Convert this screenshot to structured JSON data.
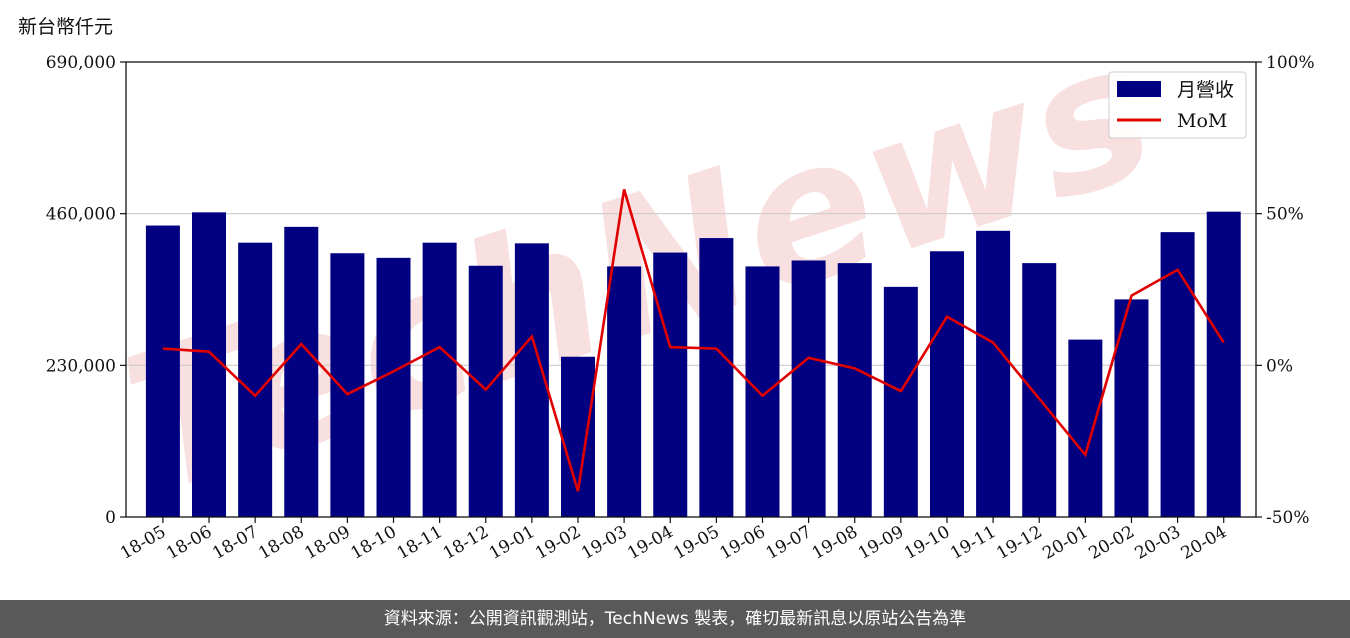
{
  "unit_label": "新台幣仟元",
  "footer": "資料來源：公開資訊觀測站，TechNews 製表，確切最新訊息以原站公告為準",
  "watermark": "TechNews",
  "colors": {
    "bar": "#000080",
    "line": "#e00000",
    "grid": "#cccccc",
    "watermark": "#f5d5d5"
  },
  "chart_data": {
    "type": "bar",
    "categories": [
      "18-05",
      "18-06",
      "18-07",
      "18-08",
      "18-09",
      "18-10",
      "18-11",
      "18-12",
      "19-01",
      "19-02",
      "19-03",
      "19-04",
      "19-05",
      "19-06",
      "19-07",
      "19-08",
      "19-09",
      "19-10",
      "19-11",
      "19-12",
      "20-01",
      "20-02",
      "20-03",
      "20-04"
    ],
    "series": [
      {
        "name": "月營收",
        "type": "bar",
        "axis": "left",
        "values": [
          442000,
          462000,
          416000,
          440000,
          400000,
          393000,
          416000,
          381000,
          415000,
          243000,
          380000,
          401000,
          423000,
          380000,
          389000,
          385000,
          349000,
          403000,
          434000,
          385000,
          269000,
          330000,
          432000,
          463000
        ]
      },
      {
        "name": "MoM",
        "type": "line",
        "axis": "right",
        "values": [
          5.5,
          4.5,
          -10,
          7,
          -9.5,
          -2,
          6,
          -8,
          9.5,
          -41.5,
          58,
          6,
          5.5,
          -10,
          2.5,
          -1,
          -8.5,
          16,
          7.5,
          -11,
          -29.5,
          23,
          31.5,
          7.5
        ]
      }
    ],
    "yleft": {
      "ylim": [
        0,
        690000
      ],
      "ticks": [
        "0",
        "230,000",
        "460,000",
        "690,000"
      ],
      "tick_values": [
        0,
        230000,
        460000,
        690000
      ]
    },
    "yright": {
      "ylim": [
        -50,
        100
      ],
      "ticks": [
        "-50%",
        "0%",
        "50%",
        "100%"
      ],
      "tick_values": [
        -50,
        0,
        50,
        100
      ]
    },
    "legend_position": "top-right",
    "grid": "horizontal"
  }
}
